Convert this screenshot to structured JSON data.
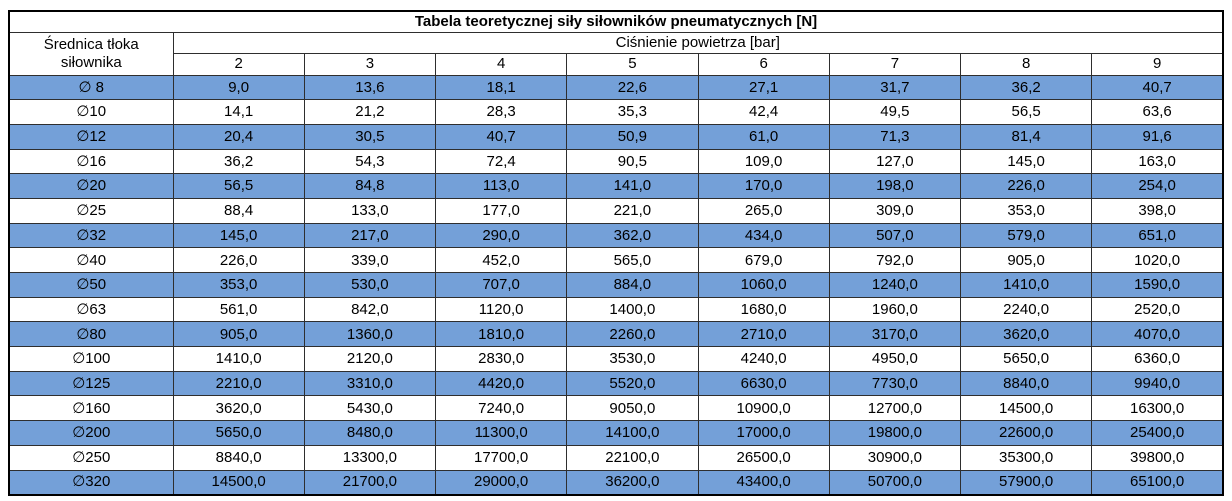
{
  "chart_data": {
    "type": "table",
    "title": "Tabela teoretycznej siły siłowników pneumatycznych [N]",
    "row_header_label": "Średnica tłoka siłownika",
    "column_group_label": "Ciśnienie powietrza [bar]",
    "columns": [
      "2",
      "3",
      "4",
      "5",
      "6",
      "7",
      "8",
      "9"
    ],
    "rows": [
      {
        "label": "∅ 8",
        "values": [
          "9,0",
          "13,6",
          "18,1",
          "22,6",
          "27,1",
          "31,7",
          "36,2",
          "40,7"
        ]
      },
      {
        "label": "∅10",
        "values": [
          "14,1",
          "21,2",
          "28,3",
          "35,3",
          "42,4",
          "49,5",
          "56,5",
          "63,6"
        ]
      },
      {
        "label": "∅12",
        "values": [
          "20,4",
          "30,5",
          "40,7",
          "50,9",
          "61,0",
          "71,3",
          "81,4",
          "91,6"
        ]
      },
      {
        "label": "∅16",
        "values": [
          "36,2",
          "54,3",
          "72,4",
          "90,5",
          "109,0",
          "127,0",
          "145,0",
          "163,0"
        ]
      },
      {
        "label": "∅20",
        "values": [
          "56,5",
          "84,8",
          "113,0",
          "141,0",
          "170,0",
          "198,0",
          "226,0",
          "254,0"
        ]
      },
      {
        "label": "∅25",
        "values": [
          "88,4",
          "133,0",
          "177,0",
          "221,0",
          "265,0",
          "309,0",
          "353,0",
          "398,0"
        ]
      },
      {
        "label": "∅32",
        "values": [
          "145,0",
          "217,0",
          "290,0",
          "362,0",
          "434,0",
          "507,0",
          "579,0",
          "651,0"
        ]
      },
      {
        "label": "∅40",
        "values": [
          "226,0",
          "339,0",
          "452,0",
          "565,0",
          "679,0",
          "792,0",
          "905,0",
          "1020,0"
        ]
      },
      {
        "label": "∅50",
        "values": [
          "353,0",
          "530,0",
          "707,0",
          "884,0",
          "1060,0",
          "1240,0",
          "1410,0",
          "1590,0"
        ]
      },
      {
        "label": "∅63",
        "values": [
          "561,0",
          "842,0",
          "1120,0",
          "1400,0",
          "1680,0",
          "1960,0",
          "2240,0",
          "2520,0"
        ]
      },
      {
        "label": "∅80",
        "values": [
          "905,0",
          "1360,0",
          "1810,0",
          "2260,0",
          "2710,0",
          "3170,0",
          "3620,0",
          "4070,0"
        ]
      },
      {
        "label": "∅100",
        "values": [
          "1410,0",
          "2120,0",
          "2830,0",
          "3530,0",
          "4240,0",
          "4950,0",
          "5650,0",
          "6360,0"
        ]
      },
      {
        "label": "∅125",
        "values": [
          "2210,0",
          "3310,0",
          "4420,0",
          "5520,0",
          "6630,0",
          "7730,0",
          "8840,0",
          "9940,0"
        ]
      },
      {
        "label": "∅160",
        "values": [
          "3620,0",
          "5430,0",
          "7240,0",
          "9050,0",
          "10900,0",
          "12700,0",
          "14500,0",
          "16300,0"
        ]
      },
      {
        "label": "∅200",
        "values": [
          "5650,0",
          "8480,0",
          "11300,0",
          "14100,0",
          "17000,0",
          "19800,0",
          "22600,0",
          "25400,0"
        ]
      },
      {
        "label": "∅250",
        "values": [
          "8840,0",
          "13300,0",
          "17700,0",
          "22100,0",
          "26500,0",
          "30900,0",
          "35300,0",
          "39800,0"
        ]
      },
      {
        "label": "∅320",
        "values": [
          "14500,0",
          "21700,0",
          "29000,0",
          "36200,0",
          "43400,0",
          "50700,0",
          "57900,0",
          "65100,0"
        ]
      }
    ],
    "layout": {
      "first_row_highlighted": true,
      "row_stripe_pattern": "alternating starting with highlighted"
    },
    "colors": {
      "row_highlight": "#74A0D8",
      "row_plain": "#FFFFFF",
      "border_outer": "#000000",
      "border_inner": "#2E2E2E",
      "text": "#000000"
    }
  }
}
